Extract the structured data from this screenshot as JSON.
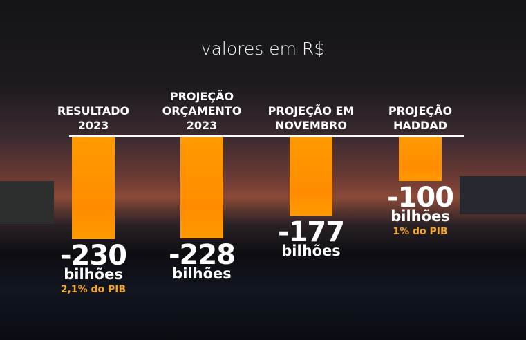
{
  "chart_data": {
    "type": "bar",
    "subtitle": "valores em R$",
    "categories": [
      "RESULTADO\n2023",
      "PROJEÇÃO\nORÇAMENTO\n2023",
      "PROJEÇÃO EM\nNOVEMBRO",
      "PROJEÇÃO\nHADDAD"
    ],
    "values": [
      -230,
      -228,
      -177,
      -100
    ],
    "unit": "bilhões",
    "notes": [
      "2,1% do PIB",
      null,
      null,
      "1% do PIB"
    ],
    "color": "#ff9a00",
    "note_color": "#f5a623"
  }
}
